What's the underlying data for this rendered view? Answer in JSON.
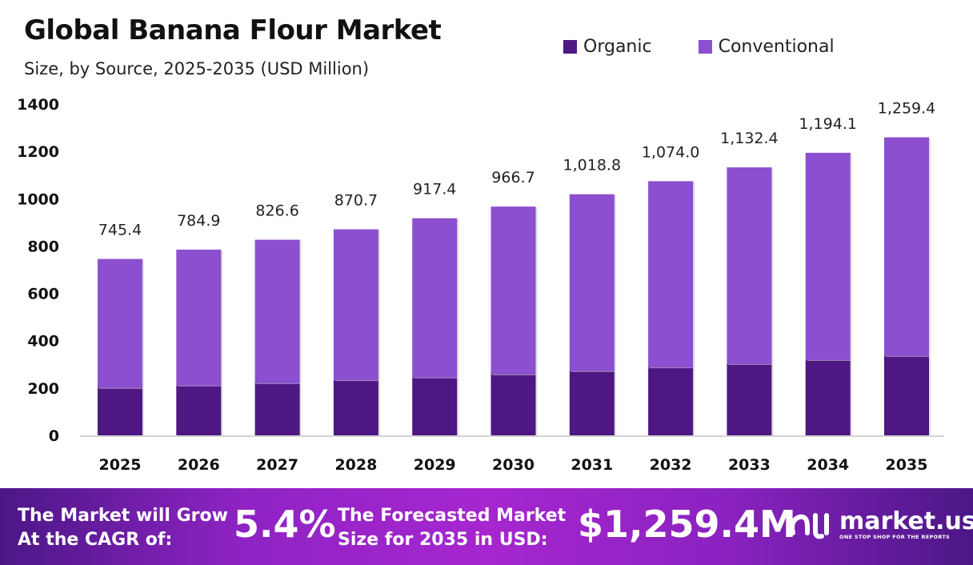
{
  "chart_data": {
    "type": "bar",
    "stacked": true,
    "title": "Global Banana Flour Market",
    "subtitle": "Size, by Source, 2025-2035 (USD Million)",
    "categories": [
      "2025",
      "2026",
      "2027",
      "2028",
      "2029",
      "2030",
      "2031",
      "2032",
      "2033",
      "2034",
      "2035"
    ],
    "series": [
      {
        "name": "Organic",
        "color": "#4e1783",
        "values": [
          200,
          210,
          220,
          233,
          244,
          257,
          271,
          287,
          301,
          318,
          335
        ]
      },
      {
        "name": "Conventional",
        "color": "#8c4fcf",
        "values": [
          545.4,
          574.9,
          606.6,
          637.7,
          673.4,
          709.7,
          747.8,
          787.0,
          831.4,
          876.1,
          924.4
        ]
      }
    ],
    "totals": [
      745.4,
      784.9,
      826.6,
      870.7,
      917.4,
      966.7,
      1018.8,
      1074.0,
      1132.4,
      1194.1,
      1259.4
    ],
    "total_labels": [
      "745.4",
      "784.9",
      "826.6",
      "870.7",
      "917.4",
      "966.7",
      "1,018.8",
      "1,074.0",
      "1,132.4",
      "1,194.1",
      "1,259.4"
    ],
    "yticks": [
      "0",
      "200",
      "400",
      "600",
      "800",
      "1000",
      "1200",
      "1400"
    ],
    "ylim": [
      0,
      1400
    ],
    "legend_position": "top-right",
    "grid": false
  },
  "footer": {
    "cagr_text_1": "The Market will Grow",
    "cagr_text_2": "At the CAGR of:",
    "cagr_value": "5.4%",
    "forecast_text_1": "The Forecasted Market",
    "forecast_text_2": "Size for 2035 in USD:",
    "forecast_value": "$1,259.4M",
    "logo_name": "market.us",
    "logo_tagline": "ONE STOP SHOP FOR THE REPORTS"
  }
}
